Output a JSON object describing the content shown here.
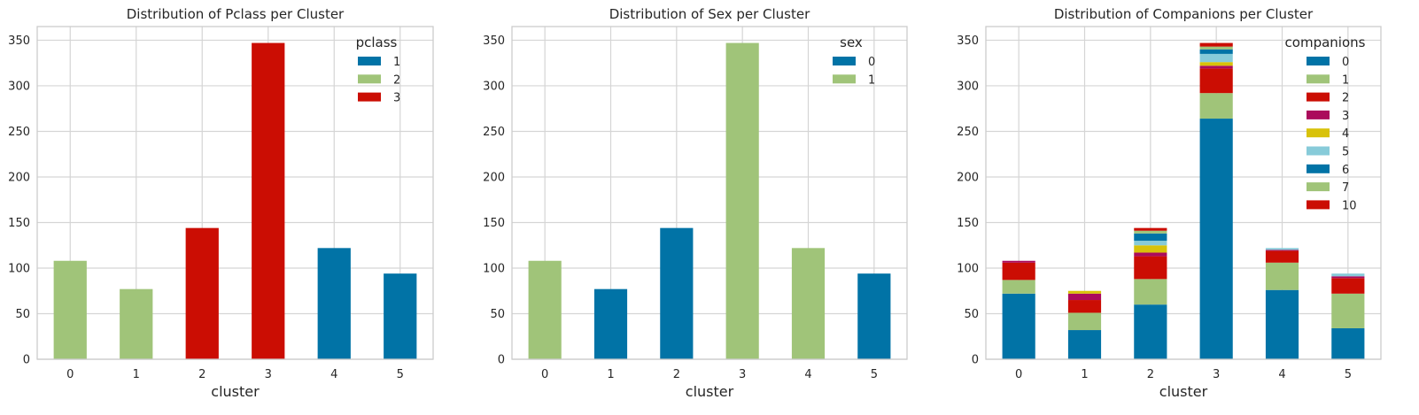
{
  "colors": {
    "blue": "#0173a6",
    "green": "#a0c479",
    "red": "#cb0d03",
    "purple": "#ab0b5c",
    "yellow": "#d8c20a",
    "cyan": "#87cbd9",
    "grid": "#d5d5d5",
    "spine": "#cccccc"
  },
  "chart_data": [
    {
      "type": "bar",
      "stacked": true,
      "title": "Distribution of Pclass per Cluster",
      "xlabel": "cluster",
      "ylabel": "",
      "categories": [
        "0",
        "1",
        "2",
        "3",
        "4",
        "5"
      ],
      "ylim": [
        0,
        365
      ],
      "yticks": [
        0,
        50,
        100,
        150,
        200,
        250,
        300,
        350
      ],
      "grid": true,
      "legend_title": "pclass",
      "legend_position": "top-right",
      "series": [
        {
          "name": "1",
          "color": "#0173a6",
          "values": [
            0,
            0,
            0,
            0,
            122,
            94
          ]
        },
        {
          "name": "2",
          "color": "#a0c479",
          "values": [
            108,
            77,
            0,
            0,
            0,
            0
          ]
        },
        {
          "name": "3",
          "color": "#cb0d03",
          "values": [
            0,
            0,
            144,
            347,
            0,
            0
          ]
        }
      ]
    },
    {
      "type": "bar",
      "stacked": true,
      "title": "Distribution of Sex per Cluster",
      "xlabel": "cluster",
      "ylabel": "",
      "categories": [
        "0",
        "1",
        "2",
        "3",
        "4",
        "5"
      ],
      "ylim": [
        0,
        365
      ],
      "yticks": [
        0,
        50,
        100,
        150,
        200,
        250,
        300,
        350
      ],
      "grid": true,
      "legend_title": "sex",
      "legend_position": "top-right",
      "series": [
        {
          "name": "0",
          "color": "#0173a6",
          "values": [
            0,
            77,
            144,
            0,
            0,
            94
          ]
        },
        {
          "name": "1",
          "color": "#a0c479",
          "values": [
            108,
            0,
            0,
            347,
            122,
            0
          ]
        }
      ]
    },
    {
      "type": "bar",
      "stacked": true,
      "title": "Distribution of Companions per Cluster",
      "xlabel": "cluster",
      "ylabel": "",
      "categories": [
        "0",
        "1",
        "2",
        "3",
        "4",
        "5"
      ],
      "ylim": [
        0,
        365
      ],
      "yticks": [
        0,
        50,
        100,
        150,
        200,
        250,
        300,
        350
      ],
      "grid": true,
      "legend_title": "companions",
      "legend_position": "top-right",
      "series": [
        {
          "name": "0",
          "color": "#0173a6",
          "values": [
            72,
            32,
            60,
            264,
            76,
            34
          ]
        },
        {
          "name": "1",
          "color": "#a0c479",
          "values": [
            15,
            19,
            28,
            28,
            30,
            38
          ]
        },
        {
          "name": "2",
          "color": "#cb0d03",
          "values": [
            19,
            14,
            25,
            27,
            13,
            17
          ]
        },
        {
          "name": "3",
          "color": "#ab0b5c",
          "values": [
            2,
            7,
            4,
            3,
            1,
            2
          ]
        },
        {
          "name": "4",
          "color": "#d8c20a",
          "values": [
            0,
            3,
            8,
            4,
            0,
            0
          ]
        },
        {
          "name": "5",
          "color": "#87cbd9",
          "values": [
            0,
            0,
            5,
            9,
            2,
            3
          ]
        },
        {
          "name": "6",
          "color": "#0173a6",
          "values": [
            0,
            0,
            8,
            5,
            0,
            0
          ]
        },
        {
          "name": "7",
          "color": "#a0c479",
          "values": [
            0,
            0,
            3,
            3,
            0,
            0
          ]
        },
        {
          "name": "10",
          "color": "#cb0d03",
          "values": [
            0,
            0,
            3,
            4,
            0,
            0
          ]
        }
      ]
    }
  ]
}
